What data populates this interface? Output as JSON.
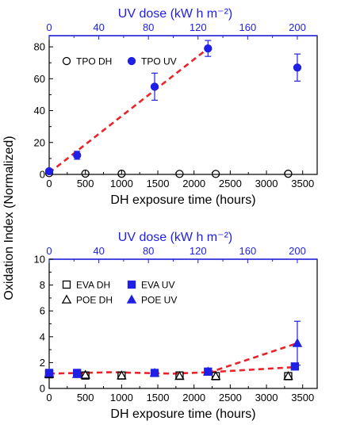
{
  "ylabel": "Oxidation Index (Normalized)",
  "colors": {
    "dh": "#000000",
    "uv": "#1f1fe6",
    "fit": "#e8232a",
    "uvaxis": "#1f1fe6"
  },
  "chart_data": [
    {
      "type": "scatter",
      "title": "",
      "xlabel": "DH exposure time (hours)",
      "top_xlabel": "UV dose (kW h m⁻²)",
      "xlim": [
        0,
        3700
      ],
      "xticks": [
        0,
        500,
        1000,
        1500,
        2000,
        2500,
        3000,
        3500
      ],
      "top_xlim": [
        0,
        216
      ],
      "top_xticks": [
        0,
        40,
        80,
        120,
        160,
        200
      ],
      "ylim": [
        0,
        87
      ],
      "yticks": [
        0,
        20,
        40,
        60,
        80
      ],
      "grid": false,
      "legend_position": "top-left",
      "series": [
        {
          "name": "TPO DH",
          "marker": "circle-open",
          "axis": "bottom",
          "x": [
            0,
            500,
            1000,
            1800,
            2300,
            3300
          ],
          "y": [
            0.8,
            0.5,
            0.4,
            0.3,
            0.3,
            0.4
          ]
        },
        {
          "name": "TPO UV",
          "marker": "circle-filled",
          "axis": "top",
          "x": [
            0,
            22.5,
            85,
            128,
            200
          ],
          "y": [
            2,
            12,
            55,
            79,
            67
          ],
          "err": [
            0,
            2.5,
            8.5,
            5,
            8.5
          ]
        }
      ],
      "fits": [
        {
          "axis": "top",
          "x": [
            0,
            128
          ],
          "y": [
            1,
            79
          ]
        }
      ]
    },
    {
      "type": "scatter",
      "title": "",
      "xlabel": "DH exposure time (hours)",
      "top_xlabel": "UV dose (kW h m⁻²)",
      "xlim": [
        0,
        3700
      ],
      "xticks": [
        0,
        500,
        1000,
        1500,
        2000,
        2500,
        3000,
        3500
      ],
      "top_xlim": [
        0,
        216
      ],
      "top_xticks": [
        0,
        40,
        80,
        120,
        160,
        200
      ],
      "ylim": [
        0,
        10
      ],
      "yticks": [
        0,
        2,
        4,
        6,
        8,
        10
      ],
      "grid": false,
      "legend_position": "top-left",
      "series": [
        {
          "name": "EVA DH",
          "marker": "square-open",
          "axis": "bottom",
          "x": [
            0,
            500,
            1000,
            1800,
            2300,
            3300
          ],
          "y": [
            1.1,
            1.0,
            1.0,
            1.0,
            0.95,
            0.95
          ]
        },
        {
          "name": "EVA UV",
          "marker": "square-filled",
          "axis": "top",
          "x": [
            0,
            22.5,
            85,
            128,
            198
          ],
          "y": [
            1.2,
            1.2,
            1.2,
            1.3,
            1.7
          ]
        },
        {
          "name": "POE DH",
          "marker": "triangle-open",
          "axis": "bottom",
          "x": [
            0,
            500,
            1000,
            1800,
            2300,
            3300
          ],
          "y": [
            1.1,
            1.05,
            1.0,
            0.95,
            0.95,
            0.95
          ]
        },
        {
          "name": "POE UV",
          "marker": "triangle-filled",
          "axis": "top",
          "x": [
            0,
            22.5,
            85,
            128,
            200
          ],
          "y": [
            1.2,
            1.1,
            1.2,
            1.3,
            3.5
          ],
          "err": [
            0,
            0,
            0,
            0,
            1.7
          ]
        }
      ],
      "fits": [
        {
          "axis": "top",
          "x": [
            0,
            50,
            100,
            128,
            198
          ],
          "y": [
            1.15,
            1.25,
            1.15,
            1.25,
            1.65
          ]
        },
        {
          "axis": "top",
          "x": [
            128,
            200
          ],
          "y": [
            1.2,
            3.5
          ]
        }
      ]
    }
  ]
}
